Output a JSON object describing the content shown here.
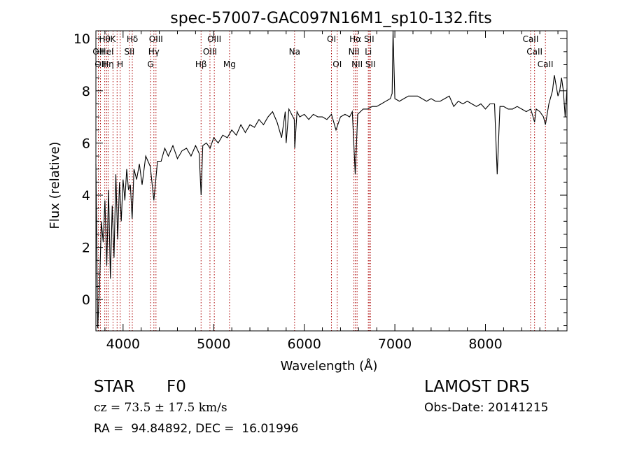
{
  "chart_data": {
    "type": "line",
    "title": "spec-57007-GAC097N16M1_sp10-132.fits",
    "xlabel": "Wavelength (Å)",
    "ylabel": "Flux (relative)",
    "xlim": [
      3700,
      8900
    ],
    "ylim": [
      -1.2,
      10.3
    ],
    "xticks": [
      4000,
      5000,
      6000,
      7000,
      8000
    ],
    "yticks": [
      0,
      2,
      4,
      6,
      8,
      10
    ],
    "grid": false,
    "colors": {
      "spectrum": "#000000",
      "line_markers": "#aa0000"
    },
    "series": [
      {
        "x": [
          3700,
          3720,
          3740,
          3760,
          3780,
          3800,
          3820,
          3840,
          3860,
          3880,
          3900,
          3920,
          3940,
          3960,
          3980,
          4000,
          4020,
          4040,
          4060,
          4080,
          4100,
          4120,
          4150,
          4180,
          4210,
          4250,
          4300,
          4340,
          4380,
          4420,
          4460,
          4500,
          4550,
          4600,
          4650,
          4700,
          4750,
          4800,
          4840,
          4861,
          4880,
          4920,
          4960,
          5000,
          5050,
          5100,
          5150,
          5200,
          5250,
          5300,
          5350,
          5400,
          5450,
          5500,
          5550,
          5600,
          5650,
          5700,
          5750,
          5790,
          5800,
          5830,
          5860,
          5890,
          5895,
          5920,
          5950,
          6000,
          6050,
          6100,
          6150,
          6200,
          6250,
          6300,
          6350,
          6400,
          6450,
          6500,
          6530,
          6563,
          6590,
          6620,
          6650,
          6700,
          6750,
          6800,
          6850,
          6900,
          6950,
          6970,
          6980,
          7000,
          7050,
          7100,
          7150,
          7200,
          7250,
          7300,
          7350,
          7400,
          7450,
          7500,
          7550,
          7600,
          7650,
          7700,
          7750,
          7800,
          7850,
          7900,
          7950,
          8000,
          8050,
          8100,
          8130,
          8160,
          8200,
          8250,
          8300,
          8350,
          8400,
          8450,
          8500,
          8542,
          8560,
          8600,
          8640,
          8662,
          8700,
          8740,
          8760,
          8780,
          8800,
          8820,
          8840,
          8860,
          8880,
          8900
        ],
        "y": [
          5.2,
          -1.1,
          0.5,
          3.0,
          2.2,
          3.8,
          1.3,
          4.2,
          0.8,
          3.6,
          1.6,
          4.8,
          2.3,
          4.5,
          3.0,
          4.6,
          3.8,
          5.0,
          4.2,
          4.4,
          3.1,
          5.0,
          4.6,
          5.2,
          4.4,
          5.5,
          5.1,
          3.8,
          5.3,
          5.3,
          5.8,
          5.5,
          5.9,
          5.4,
          5.7,
          5.8,
          5.5,
          5.9,
          5.6,
          4.0,
          5.9,
          6.0,
          5.8,
          6.2,
          6.0,
          6.3,
          6.2,
          6.5,
          6.3,
          6.7,
          6.4,
          6.7,
          6.6,
          6.9,
          6.7,
          7.0,
          7.2,
          6.8,
          6.2,
          7.2,
          6.0,
          7.3,
          7.1,
          6.9,
          5.8,
          7.2,
          7.0,
          7.1,
          6.9,
          7.1,
          7.0,
          7.0,
          6.9,
          7.1,
          6.5,
          7.0,
          7.1,
          7.0,
          7.2,
          4.8,
          7.1,
          7.2,
          7.3,
          7.3,
          7.4,
          7.4,
          7.5,
          7.6,
          7.7,
          7.9,
          10.3,
          7.7,
          7.6,
          7.7,
          7.8,
          7.8,
          7.8,
          7.7,
          7.6,
          7.7,
          7.6,
          7.6,
          7.7,
          7.8,
          7.4,
          7.6,
          7.5,
          7.6,
          7.5,
          7.4,
          7.5,
          7.3,
          7.5,
          7.5,
          4.8,
          7.4,
          7.4,
          7.3,
          7.3,
          7.4,
          7.3,
          7.2,
          7.3,
          6.8,
          7.3,
          7.2,
          7.0,
          6.7,
          7.5,
          8.0,
          8.6,
          8.2,
          7.8,
          8.0,
          8.5,
          8.0,
          7.0,
          8.1
        ]
      }
    ],
    "line_markers": [
      {
        "wavelength": 3727,
        "label": "OII",
        "row": 1
      },
      {
        "wavelength": 3750,
        "label": "OII",
        "row": 2
      },
      {
        "wavelength": 3798,
        "label": "Hθ",
        "row": 0
      },
      {
        "wavelength": 3820,
        "label": "HeI",
        "row": 1
      },
      {
        "wavelength": 3835,
        "label": "Hη",
        "row": 2
      },
      {
        "wavelength": 3889,
        "label": "K",
        "row": 0
      },
      {
        "wavelength": 3934,
        "label": "",
        "row": 0
      },
      {
        "wavelength": 3968,
        "label": "H",
        "row": 2
      },
      {
        "wavelength": 4070,
        "label": "SII",
        "row": 1
      },
      {
        "wavelength": 4102,
        "label": "Hδ",
        "row": 0
      },
      {
        "wavelength": 4304,
        "label": "G",
        "row": 2
      },
      {
        "wavelength": 4340,
        "label": "Hγ",
        "row": 1
      },
      {
        "wavelength": 4363,
        "label": "OIII",
        "row": 0
      },
      {
        "wavelength": 4861,
        "label": "Hβ",
        "row": 2
      },
      {
        "wavelength": 4959,
        "label": "OIII",
        "row": 1
      },
      {
        "wavelength": 5007,
        "label": "OIII",
        "row": 0
      },
      {
        "wavelength": 5175,
        "label": "Mg",
        "row": 2
      },
      {
        "wavelength": 5893,
        "label": "Na",
        "row": 1
      },
      {
        "wavelength": 6300,
        "label": "OI",
        "row": 0
      },
      {
        "wavelength": 6364,
        "label": "OI",
        "row": 2
      },
      {
        "wavelength": 6548,
        "label": "NII",
        "row": 1
      },
      {
        "wavelength": 6563,
        "label": "Hα",
        "row": 0
      },
      {
        "wavelength": 6583,
        "label": "NII",
        "row": 2
      },
      {
        "wavelength": 6707,
        "label": "Li",
        "row": 1
      },
      {
        "wavelength": 6716,
        "label": "SII",
        "row": 0
      },
      {
        "wavelength": 6731,
        "label": "SII",
        "row": 2
      },
      {
        "wavelength": 8498,
        "label": "CaII",
        "row": 0
      },
      {
        "wavelength": 8542,
        "label": "CaII",
        "row": 1
      },
      {
        "wavelength": 8662,
        "label": "CaII",
        "row": 2
      }
    ]
  },
  "info": {
    "class_label": "STAR",
    "subclass": "F0",
    "survey": "LAMOST DR5",
    "cz": "cz = 73.5 ± 17.5 km/s",
    "obs_date": "Obs-Date: 20141215",
    "coords": "RA =  94.84892, DEC =  16.01996"
  }
}
